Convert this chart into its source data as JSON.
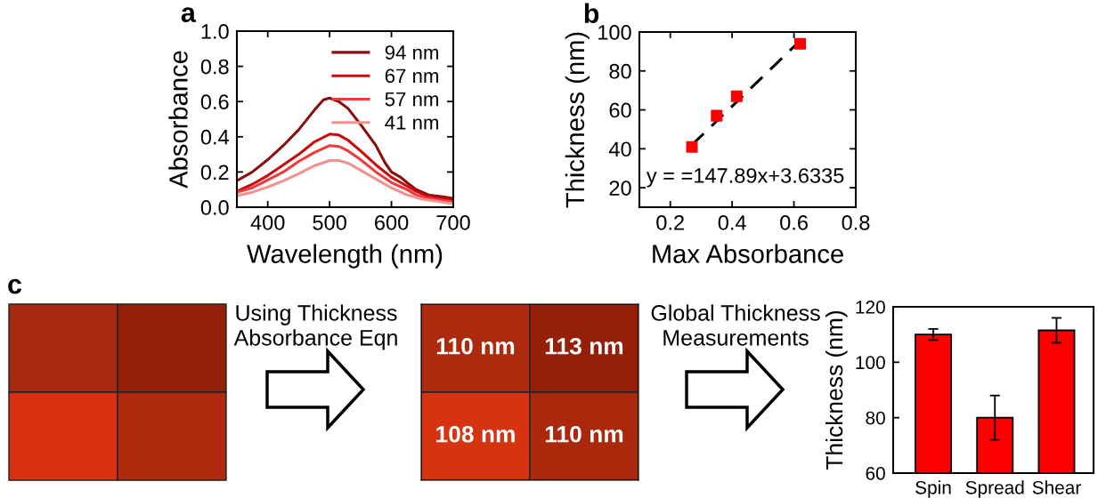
{
  "chart_data": [
    {
      "type": "line",
      "title": "a",
      "xlabel": "Wavelength (nm)",
      "ylabel": "Absorbance",
      "xlim": [
        350,
        700
      ],
      "ylim": [
        0,
        1.0
      ],
      "xticks": [
        400,
        500,
        600,
        700
      ],
      "yticks": [
        {
          "value": 0,
          "label": "0.0"
        },
        0.2,
        0.4,
        0.6,
        0.8,
        {
          "value": 1.0,
          "label": "1.0"
        }
      ],
      "legend": "top right",
      "grid": false,
      "series": [
        {
          "name": "94 nm",
          "color": "#8b0e0e",
          "x": [
            350,
            375,
            400,
            425,
            450,
            475,
            490,
            500,
            515,
            530,
            550,
            575,
            590,
            600,
            615,
            625,
            640,
            660,
            680,
            700
          ],
          "values": [
            0.15,
            0.2,
            0.27,
            0.35,
            0.44,
            0.55,
            0.61,
            0.62,
            0.6,
            0.56,
            0.47,
            0.35,
            0.25,
            0.2,
            0.17,
            0.14,
            0.1,
            0.07,
            0.06,
            0.05
          ]
        },
        {
          "name": "67 nm",
          "color": "#cc0a0a",
          "x": [
            350,
            375,
            400,
            425,
            450,
            475,
            500,
            515,
            530,
            550,
            575,
            600,
            615,
            625,
            640,
            660,
            700
          ],
          "values": [
            0.09,
            0.13,
            0.18,
            0.24,
            0.3,
            0.37,
            0.415,
            0.41,
            0.38,
            0.32,
            0.24,
            0.17,
            0.14,
            0.12,
            0.09,
            0.06,
            0.04
          ]
        },
        {
          "name": "57 nm",
          "color": "#ee3a3a",
          "x": [
            350,
            375,
            400,
            425,
            450,
            475,
            500,
            515,
            530,
            550,
            575,
            600,
            625,
            640,
            660,
            700
          ],
          "values": [
            0.085,
            0.11,
            0.155,
            0.2,
            0.26,
            0.31,
            0.35,
            0.345,
            0.32,
            0.27,
            0.2,
            0.14,
            0.1,
            0.07,
            0.05,
            0.03
          ]
        },
        {
          "name": "41 nm",
          "color": "#f59090",
          "x": [
            350,
            375,
            400,
            425,
            450,
            475,
            500,
            515,
            530,
            550,
            575,
            600,
            625,
            650,
            700
          ],
          "values": [
            0.065,
            0.085,
            0.115,
            0.15,
            0.19,
            0.235,
            0.265,
            0.265,
            0.25,
            0.21,
            0.16,
            0.11,
            0.07,
            0.045,
            0.02
          ]
        }
      ]
    },
    {
      "type": "scatter",
      "title": "b",
      "xlabel": "Max Absorbance",
      "ylabel": "Thickness (nm)",
      "xlim": [
        0.1,
        0.8
      ],
      "ylim": [
        10,
        100
      ],
      "xticks": [
        0.2,
        0.4,
        0.6,
        0.8
      ],
      "yticks": [
        20,
        40,
        60,
        80,
        100
      ],
      "grid": false,
      "marker": "square",
      "annotations": [
        "y = =147.89x+3.6335"
      ],
      "series": [
        {
          "type": "scatter",
          "color": "#ff0000",
          "x": [
            0.27,
            0.35,
            0.415,
            0.62
          ],
          "values": [
            41,
            57,
            67,
            94
          ]
        },
        {
          "type": "line",
          "color": "#000000",
          "line_style": "dashed",
          "marker": "none",
          "x": [
            0.27,
            0.61
          ],
          "values": [
            42,
            94
          ]
        }
      ]
    },
    {
      "type": "other",
      "title": "c",
      "annotations": [
        "Using Thickness\nAbsorbance Eqn",
        "Global Thickness\nMeasurements"
      ]
    },
    {
      "type": "other",
      "cell_labels": [
        [
          "110 nm",
          "113 nm"
        ],
        [
          "108 nm",
          "110 nm"
        ]
      ],
      "colors": [
        [
          "#ad2a0e",
          "#951f08"
        ],
        [
          "#d63310",
          "#aa280c"
        ]
      ]
    },
    {
      "type": "bar",
      "categories": [
        "Spin",
        "Spread",
        "Shear"
      ],
      "values": [
        110,
        80,
        111.5
      ],
      "errors": [
        2,
        8,
        4.5
      ],
      "color": "#ff0000",
      "ylabel": "Thickness (nm)",
      "ylim": [
        60,
        120
      ],
      "yticks": [
        60,
        80,
        100,
        120
      ],
      "grid": false
    }
  ]
}
